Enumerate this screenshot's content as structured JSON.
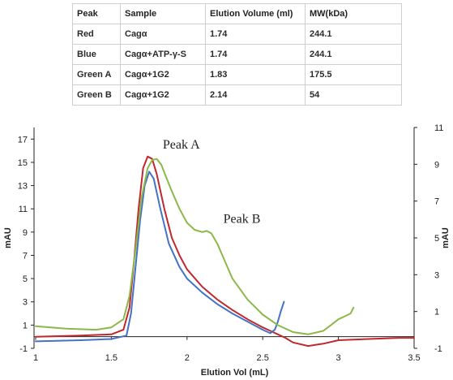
{
  "table": {
    "headers": [
      "Peak",
      "Sample",
      "Elution Volume (ml)",
      "MW(kDa)"
    ],
    "rows": [
      [
        "Red",
        "Cagα",
        "1.74",
        "244.1"
      ],
      [
        "Blue",
        "Cagα+ATP-γ-S",
        "1.74",
        "244.1"
      ],
      [
        "Green A",
        "Cagα+1G2",
        "1.83",
        "175.5"
      ],
      [
        "Green B",
        "Cagα+1G2",
        "2.14",
        "54"
      ]
    ]
  },
  "chart_data": {
    "type": "line",
    "title": "",
    "xlabel": "Elution Vol (mL)",
    "ylabel": "mAU",
    "y2label": "mAU",
    "xlim": [
      1,
      3.5
    ],
    "ylim": [
      -1,
      18
    ],
    "y2lim": [
      -1,
      11
    ],
    "x_ticks": [
      "1",
      "1.5",
      "2",
      "2.5",
      "3",
      "3.5"
    ],
    "x_tick_values": [
      1,
      1.5,
      2,
      2.5,
      3,
      3.5
    ],
    "y_ticks": [
      "-1",
      "1",
      "3",
      "5",
      "7",
      "9",
      "11",
      "13",
      "15",
      "17"
    ],
    "y_tick_values": [
      -1,
      1,
      3,
      5,
      7,
      9,
      11,
      13,
      15,
      17
    ],
    "y2_ticks": [
      "-1",
      "1",
      "3",
      "5",
      "7",
      "9",
      "11"
    ],
    "y2_tick_values": [
      -1,
      1,
      3,
      5,
      7,
      9,
      11
    ],
    "grid": false,
    "annotations": [
      {
        "text": "Peak A",
        "x": 1.84,
        "y": 16.2
      },
      {
        "text": "Peak B",
        "x": 2.24,
        "y": 9.8
      }
    ],
    "series": [
      {
        "color": "#c0282d",
        "x": [
          1.0,
          1.3,
          1.5,
          1.58,
          1.62,
          1.65,
          1.68,
          1.71,
          1.74,
          1.77,
          1.8,
          1.85,
          1.9,
          1.95,
          2.0,
          2.1,
          2.2,
          2.3,
          2.4,
          2.5,
          2.55,
          2.6,
          2.65,
          2.7,
          2.8,
          2.9,
          3.0,
          3.2,
          3.4,
          3.5
        ],
        "y": [
          0.0,
          0.1,
          0.2,
          0.6,
          2.5,
          6.5,
          11.0,
          14.5,
          15.5,
          15.3,
          14.0,
          11.0,
          8.5,
          7.0,
          5.8,
          4.3,
          3.2,
          2.3,
          1.5,
          0.8,
          0.5,
          0.2,
          -0.1,
          -0.5,
          -0.8,
          -0.6,
          -0.3,
          -0.2,
          -0.1,
          -0.1
        ]
      },
      {
        "color": "#4472c4",
        "x": [
          1.0,
          1.3,
          1.5,
          1.6,
          1.63,
          1.66,
          1.69,
          1.72,
          1.75,
          1.78,
          1.82,
          1.88,
          1.95,
          2.0,
          2.1,
          2.2,
          2.3,
          2.4,
          2.5,
          2.55,
          2.58,
          2.6,
          2.62,
          2.64
        ],
        "y": [
          -0.4,
          -0.3,
          -0.2,
          0.1,
          2.0,
          6.0,
          10.0,
          13.0,
          14.2,
          13.6,
          11.2,
          8.0,
          6.0,
          5.0,
          3.8,
          2.8,
          2.0,
          1.3,
          0.6,
          0.3,
          0.6,
          1.3,
          2.2,
          3.0
        ]
      },
      {
        "color": "#8cb84a",
        "x": [
          1.0,
          1.2,
          1.4,
          1.5,
          1.58,
          1.62,
          1.66,
          1.7,
          1.74,
          1.77,
          1.8,
          1.83,
          1.86,
          1.9,
          1.95,
          2.0,
          2.05,
          2.1,
          2.13,
          2.16,
          2.2,
          2.25,
          2.3,
          2.4,
          2.5,
          2.6,
          2.7,
          2.8,
          2.9,
          2.95,
          3.0,
          3.05,
          3.08,
          3.1
        ],
        "y": [
          0.9,
          0.7,
          0.6,
          0.8,
          1.5,
          3.5,
          7.5,
          12.0,
          14.5,
          15.2,
          15.3,
          14.8,
          13.8,
          12.5,
          11.0,
          9.8,
          9.2,
          9.0,
          9.1,
          8.9,
          8.0,
          6.5,
          5.0,
          3.2,
          1.9,
          1.0,
          0.4,
          0.2,
          0.5,
          1.0,
          1.5,
          1.8,
          2.0,
          2.5
        ]
      }
    ]
  }
}
